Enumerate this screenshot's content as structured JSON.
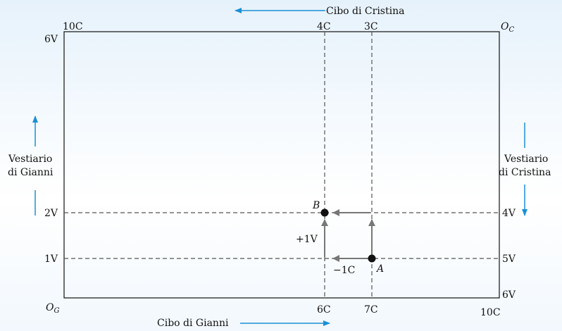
{
  "top_axis_label": "Cibo di Cristina",
  "bottom_axis_label": "Cibo di Gianni",
  "left_axis_label": [
    "Vestiario",
    "di Gianni"
  ],
  "right_axis_label": [
    "Vestiario",
    "di Cristina"
  ],
  "origin_gianni": "O",
  "origin_gianni_sub": "G",
  "origin_cristina": "O",
  "origin_cristina_sub": "C",
  "top_ticks": {
    "left": "10C",
    "mid1": "4C",
    "mid2": "3C"
  },
  "bottom_ticks": {
    "mid1": "6C",
    "mid2": "7C",
    "right": "10C"
  },
  "left_ticks": {
    "top": "6V",
    "mid1": "2V",
    "mid2": "1V"
  },
  "right_ticks": {
    "mid1": "4V",
    "mid2": "5V",
    "bottom": "6V"
  },
  "points": {
    "A": "A",
    "B": "B"
  },
  "move_labels": {
    "plus": "+1V",
    "minus": "−1C"
  },
  "colors": {
    "accent_arrow": "#1a8fd6",
    "line": "#555555",
    "move_arrow": "#777777",
    "point": "#111111"
  },
  "chart_data": {
    "type": "edgeworth-box",
    "food_total": 10,
    "clothing_total": 6,
    "allocations": [
      {
        "point": "A",
        "food_gianni": 7,
        "clothing_gianni": 1,
        "food_cristina": 3,
        "clothing_cristina": 5
      },
      {
        "point": "B",
        "food_gianni": 6,
        "clothing_gianni": 2,
        "food_cristina": 4,
        "clothing_cristina": 4
      }
    ],
    "move_A_to_B_gianni": {
      "food": -1,
      "clothing": 1
    }
  }
}
